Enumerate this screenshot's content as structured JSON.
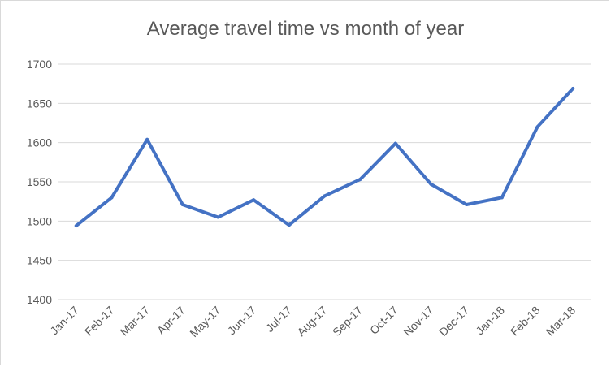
{
  "chart_data": {
    "type": "line",
    "title": "Average travel time vs month of year",
    "xlabel": "",
    "ylabel": "",
    "categories": [
      "Jan-17",
      "Feb-17",
      "Mar-17",
      "Apr-17",
      "May-17",
      "Jun-17",
      "Jul-17",
      "Aug-17",
      "Sep-17",
      "Oct-17",
      "Nov-17",
      "Dec-17",
      "Jan-18",
      "Feb-18",
      "Mar-18"
    ],
    "series": [
      {
        "values": [
          1494,
          1530,
          1604,
          1521,
          1505,
          1527,
          1495,
          1532,
          1553,
          1599,
          1547,
          1521,
          1530,
          1620,
          1669
        ]
      }
    ],
    "ylim": [
      1400,
      1700
    ],
    "yticks": [
      1400,
      1450,
      1500,
      1550,
      1600,
      1650,
      1700
    ],
    "grid": true,
    "legend": "none",
    "colors": {
      "line": "#4472c4",
      "grid": "#d9d9d9",
      "text": "#595959"
    }
  }
}
